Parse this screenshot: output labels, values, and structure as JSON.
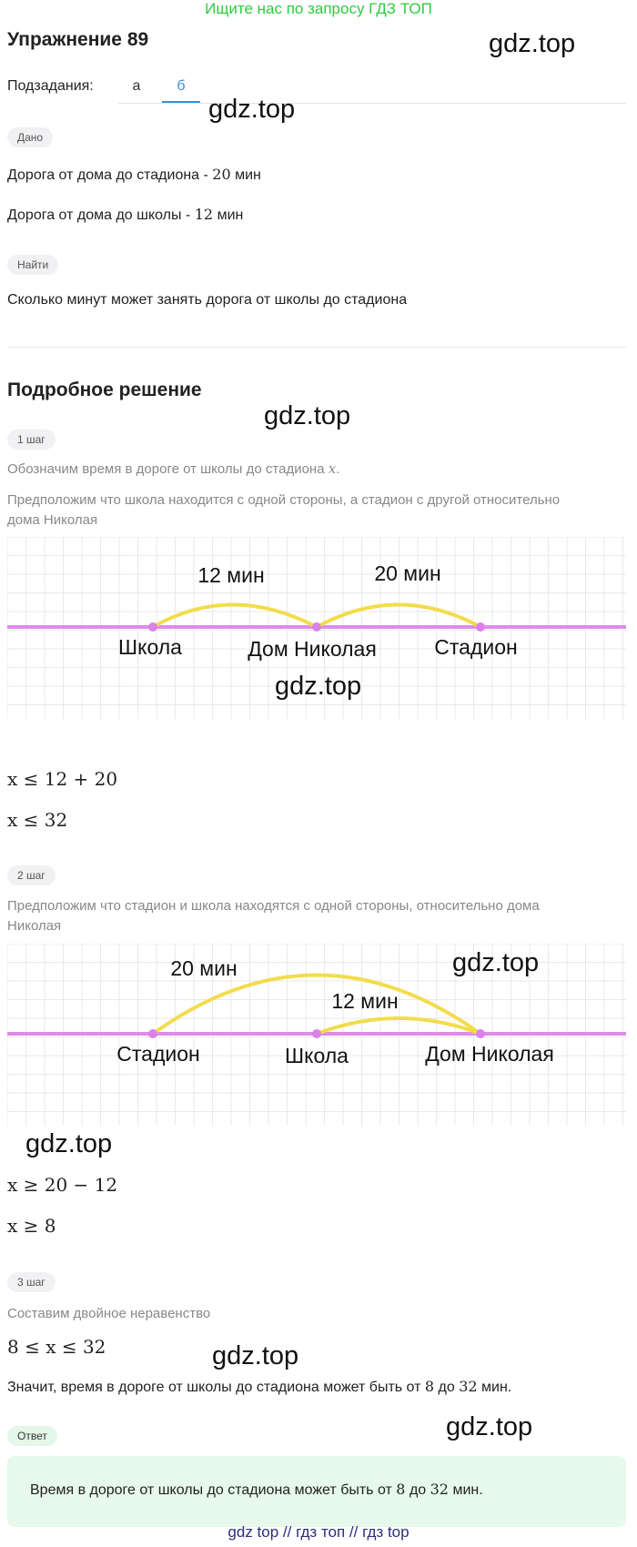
{
  "banner": "Ищите нас по запросу ГДЗ ТОП",
  "title": "Упражнение 89",
  "watermark": "gdz.top",
  "subtasks": {
    "label": "Подзадания:",
    "tabs": [
      "а",
      "б"
    ],
    "active": "б"
  },
  "given": {
    "badge": "Дано",
    "line1_text": "Дорога от дома до стадиона -",
    "line1_value": "20",
    "line1_unit": "мин",
    "line2_text": "Дорога от дома до школы -",
    "line2_value": "12",
    "line2_unit": "мин"
  },
  "find": {
    "badge": "Найти",
    "text": "Сколько минут может занять дорога от школы до стадиона"
  },
  "solution_title": "Подробное решение",
  "step1": {
    "badge": "1 шаг",
    "text1": "Обозначим время в дороге от школы до стадиона",
    "var": "x",
    "text1_end": ".",
    "text2_l1": "Предположим что школа находится с одной стороны, а стадион с другой относительно",
    "text2_l2": "дома Николая",
    "diagram": {
      "arc1": "12 мин",
      "arc2": "20 мин",
      "p1": "Школа",
      "p2": "Дом Николая",
      "p3": "Стадион"
    },
    "math1": "x ≤ 12 + 20",
    "math2": "x ≤ 32"
  },
  "step2": {
    "badge": "2 шаг",
    "text_l1": "Предположим что стадион и школа находятся с одной стороны, относительно дома",
    "text_l2": "Николая",
    "diagram": {
      "arc1": "20 мин",
      "arc2": "12 мин",
      "p1": "Стадион",
      "p2": "Школа",
      "p3": "Дом Николая"
    },
    "math1": "x ≥ 20 − 12",
    "math2": "x ≥ 8"
  },
  "step3": {
    "badge": "3 шаг",
    "text": "Составим двойное неравенство",
    "math": "8 ≤ x ≤ 32",
    "conclusion_prefix": "Значит, время в дороге от школы до стадиона может быть от",
    "n1": "8",
    "mid": "до",
    "n2": "32",
    "suffix": "мин."
  },
  "answer": {
    "badge": "Ответ",
    "prefix": "Время в дороге от школы до стадиона может быть от",
    "n1": "8",
    "mid": "до",
    "n2": "32",
    "suffix": "мин."
  },
  "footer": "gdz top  //  гдз топ  //  гдз top",
  "colors": {
    "line": "#e08be8",
    "arc": "#f3dc4c",
    "dot": "#d982e8",
    "grid": "#e9e9e9",
    "tab_active": "#3a8fd9",
    "banner": "#2ecc40"
  }
}
